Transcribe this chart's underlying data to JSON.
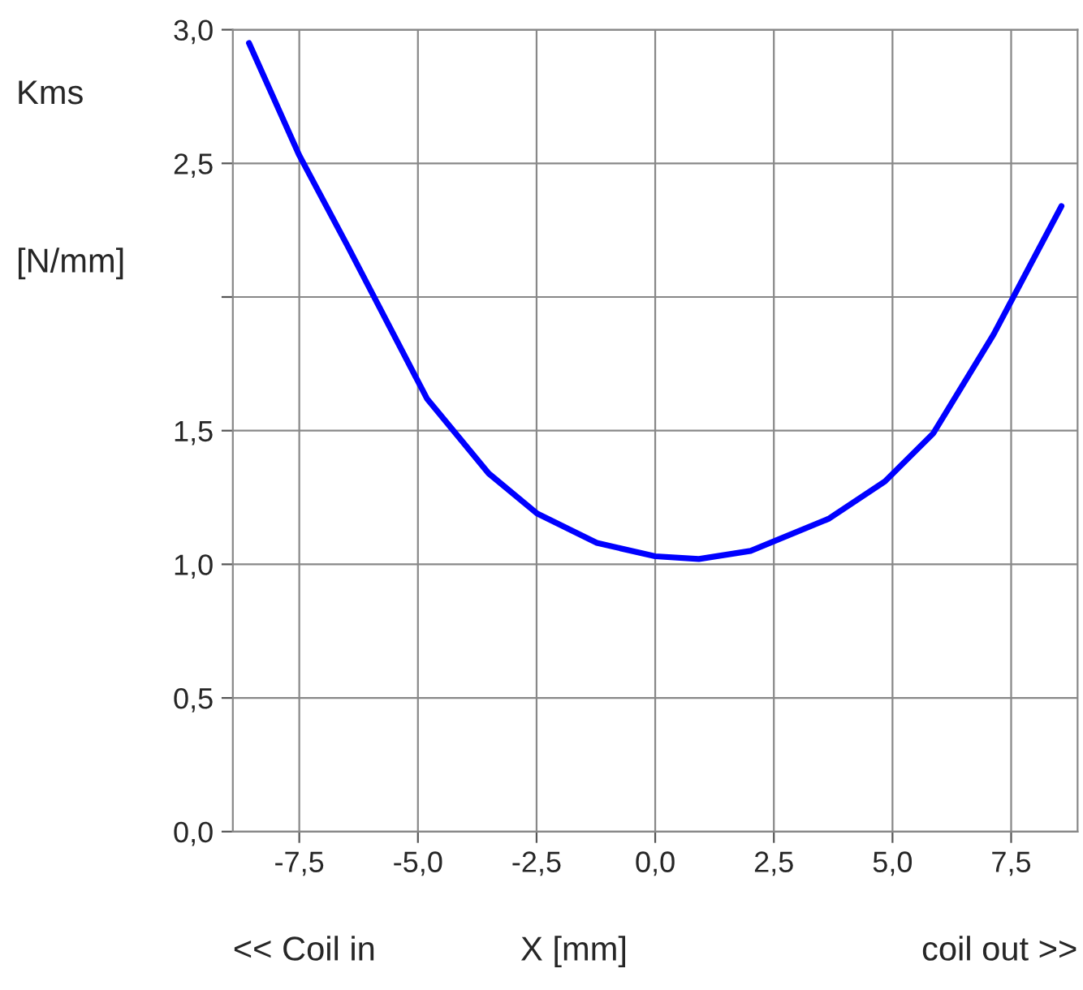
{
  "chart_data": {
    "type": "line",
    "ylabel": "Kms",
    "xlabel": "X [mm]",
    "annotations": [
      "[N/mm]",
      "<< Coil in",
      "coil out >>"
    ],
    "series": [
      {
        "color": "#0000ff",
        "x": [
          -8.56,
          -7.5,
          -6.48,
          -4.81,
          -3.51,
          -2.49,
          -1.23,
          0,
          0.92,
          2.01,
          3.65,
          4.84,
          5.86,
          7.13,
          8.56
        ],
        "values": [
          2.95,
          2.53,
          2.19,
          1.62,
          1.34,
          1.19,
          1.08,
          1.03,
          1.02,
          1.05,
          1.17,
          1.31,
          1.49,
          1.86,
          2.34
        ]
      }
    ],
    "xlim": [
      -8.9,
      8.9
    ],
    "xticks": [
      {
        "value": -7.5,
        "label": "-7,5"
      },
      {
        "value": -5,
        "label": "-5,0"
      },
      {
        "value": -2.5,
        "label": "-2,5"
      },
      {
        "value": 0,
        "label": "0,0"
      },
      {
        "value": 2.5,
        "label": "2,5"
      },
      {
        "value": 5,
        "label": "5,0"
      },
      {
        "value": 7.5,
        "label": "7,5"
      }
    ],
    "ylim": [
      0,
      3
    ],
    "yticks": [
      {
        "value": 0,
        "label": "0,0"
      },
      {
        "value": 0.5,
        "label": "0,5"
      },
      {
        "value": 1,
        "label": "1,0"
      },
      {
        "value": 1.5,
        "label": "1,5"
      },
      {
        "value": 2,
        "label": null
      },
      {
        "value": 2.5,
        "label": "2,5"
      },
      {
        "value": 3,
        "label": "3,0"
      }
    ],
    "grid": true,
    "marker": "none",
    "line_style": "solid"
  }
}
